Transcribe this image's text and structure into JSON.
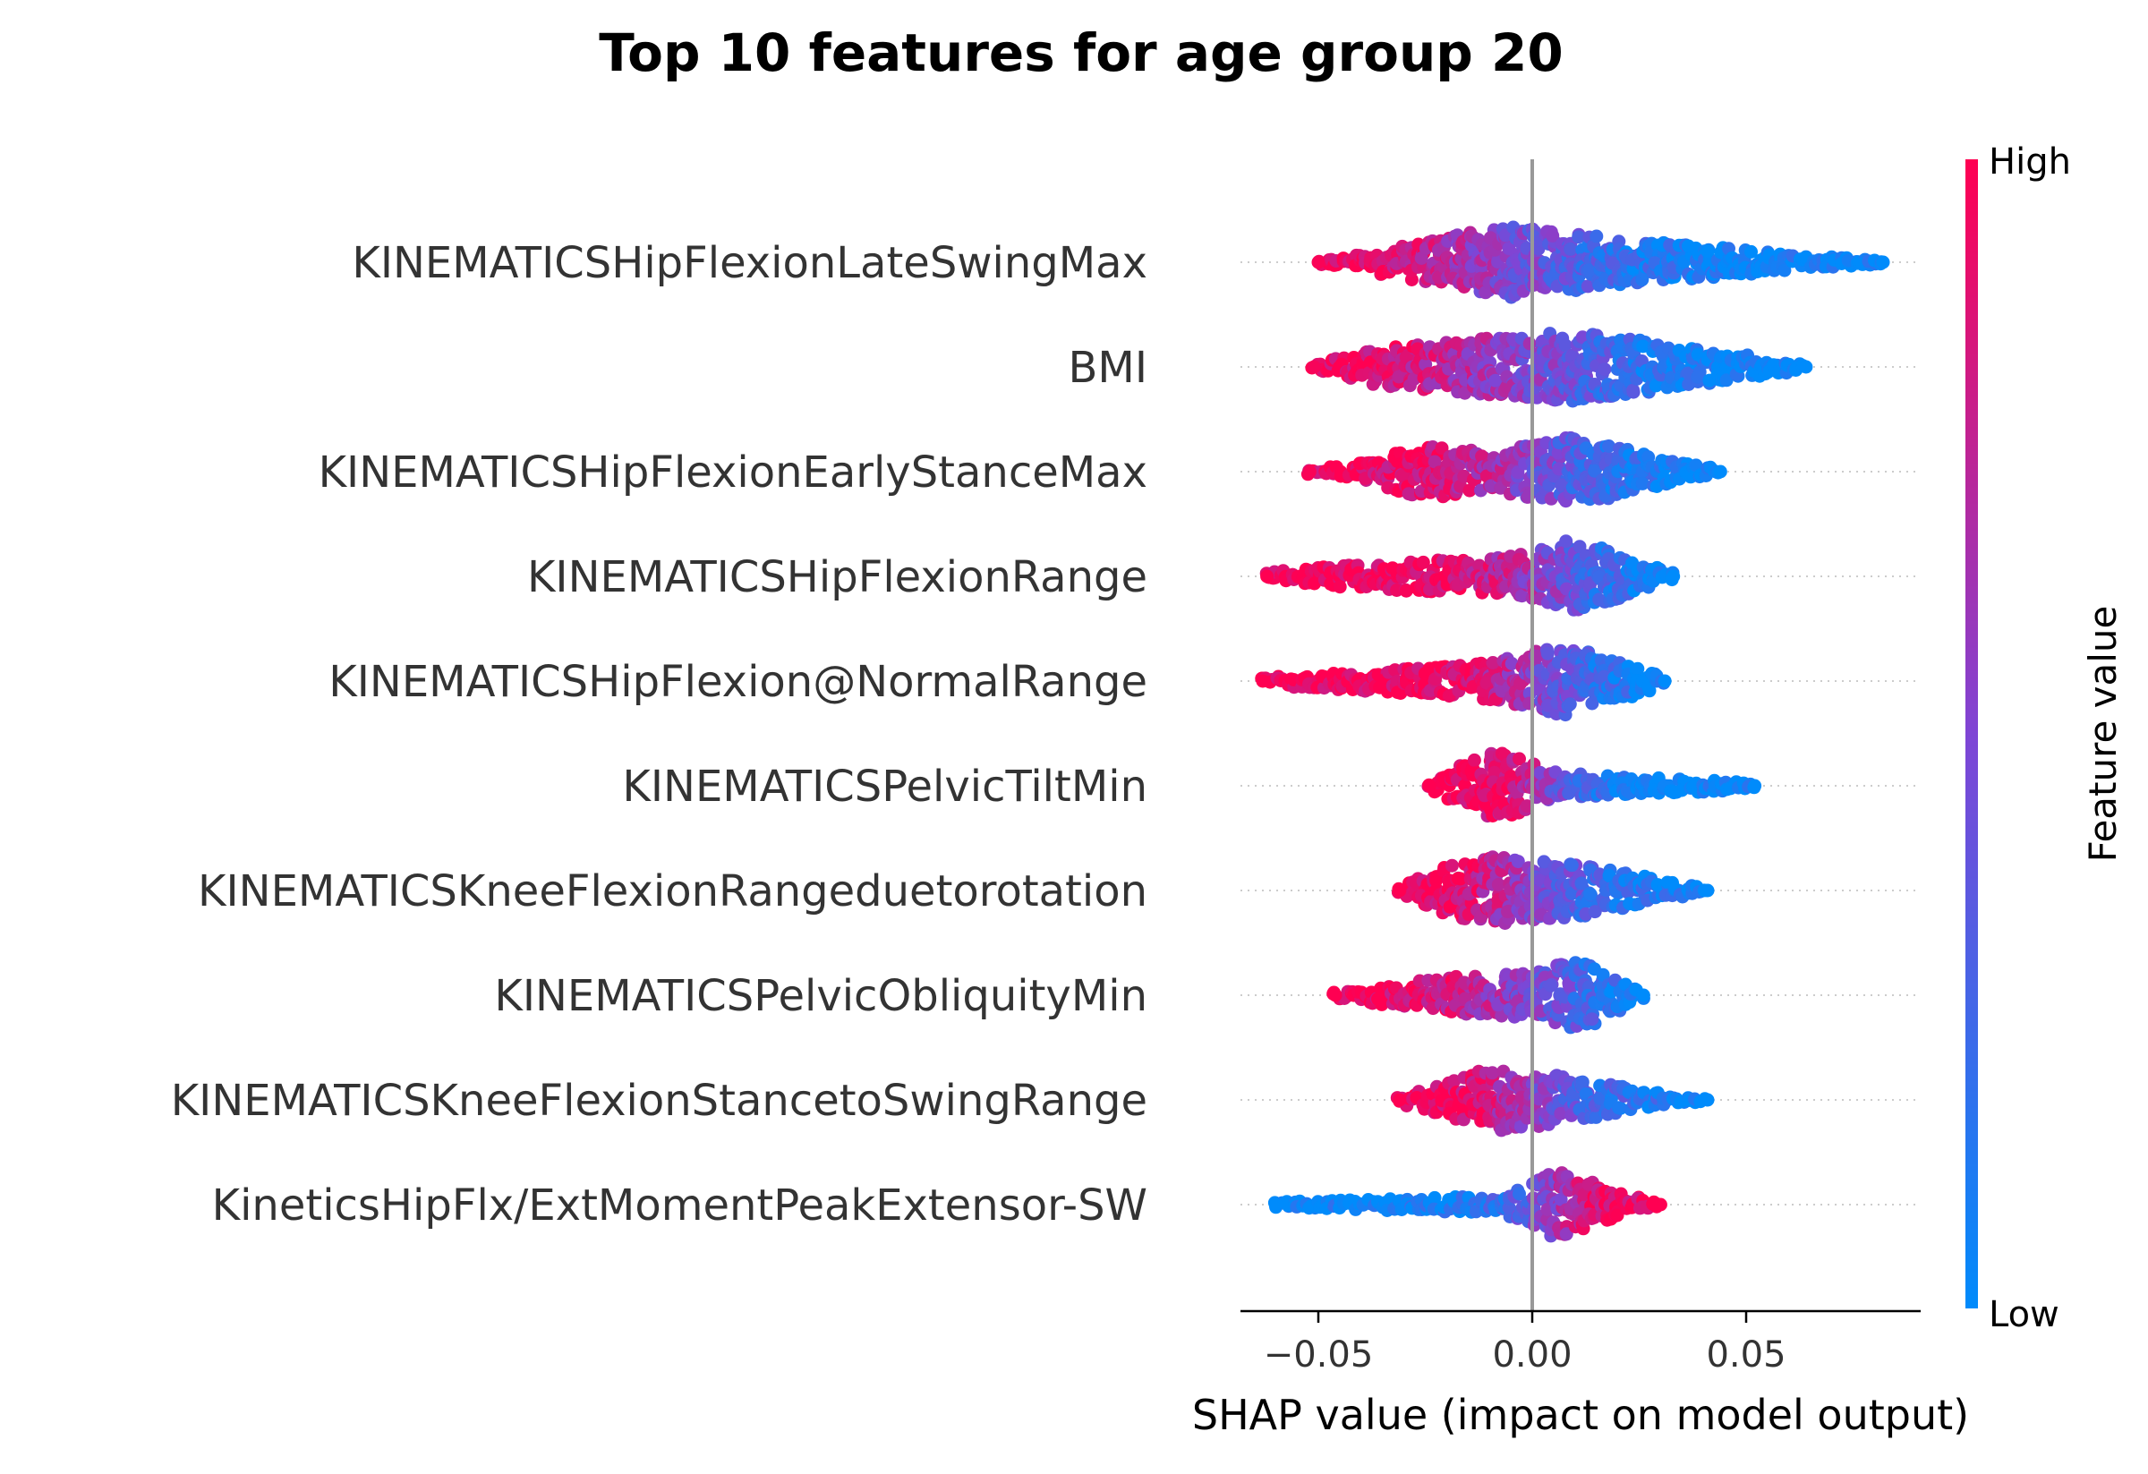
{
  "chart_data": {
    "type": "scatter",
    "subtype": "shap-beeswarm",
    "title": "Top 10 features for age group 20",
    "xlabel": "SHAP value (impact on model output)",
    "xlim": [
      -0.07,
      0.09
    ],
    "xticks": [
      -0.05,
      0.0,
      0.05
    ],
    "xtick_labels": [
      "−0.05",
      "0.00",
      "0.05"
    ],
    "zero_line": 0.0,
    "grid": false,
    "colorbar": {
      "label": "Feature value",
      "high_label": "High",
      "low_label": "Low",
      "high_color": "#ff0052",
      "low_color": "#008bfb"
    },
    "features": [
      {
        "name": "KINEMATICSHipFlexionLateSwingMax",
        "min": -0.05,
        "max": 0.082,
        "spread": [
          [
            -0.05,
            0.06
          ],
          [
            -0.03,
            0.45
          ],
          [
            -0.015,
            0.85
          ],
          [
            -0.005,
            1.0
          ],
          [
            0.01,
            0.8
          ],
          [
            0.03,
            0.55
          ],
          [
            0.05,
            0.35
          ],
          [
            0.065,
            0.18
          ],
          [
            0.082,
            0.06
          ]
        ],
        "hue": [
          [
            -0.05,
            0.02
          ],
          [
            -0.03,
            0.12
          ],
          [
            -0.015,
            0.35
          ],
          [
            -0.005,
            0.5
          ],
          [
            0.005,
            0.62
          ],
          [
            0.02,
            0.82
          ],
          [
            0.04,
            0.95
          ],
          [
            0.082,
            1.0
          ]
        ]
      },
      {
        "name": "BMI",
        "min": -0.051,
        "max": 0.064,
        "spread": [
          [
            -0.051,
            0.06
          ],
          [
            -0.035,
            0.55
          ],
          [
            -0.02,
            0.7
          ],
          [
            -0.005,
            0.85
          ],
          [
            0.01,
            1.0
          ],
          [
            0.025,
            0.75
          ],
          [
            0.04,
            0.5
          ],
          [
            0.055,
            0.25
          ],
          [
            0.064,
            0.06
          ]
        ],
        "hue": [
          [
            -0.051,
            0.03
          ],
          [
            -0.03,
            0.15
          ],
          [
            -0.01,
            0.38
          ],
          [
            0.005,
            0.55
          ],
          [
            0.02,
            0.78
          ],
          [
            0.035,
            0.93
          ],
          [
            0.064,
            1.0
          ]
        ]
      },
      {
        "name": "KINEMATICSHipFlexionEarlyStanceMax",
        "min": -0.052,
        "max": 0.044,
        "spread": [
          [
            -0.052,
            0.08
          ],
          [
            -0.04,
            0.25
          ],
          [
            -0.025,
            0.75
          ],
          [
            -0.01,
            0.55
          ],
          [
            0.0,
            0.75
          ],
          [
            0.008,
            1.0
          ],
          [
            0.02,
            0.7
          ],
          [
            0.032,
            0.35
          ],
          [
            0.044,
            0.06
          ]
        ],
        "hue": [
          [
            -0.052,
            0.02
          ],
          [
            -0.025,
            0.1
          ],
          [
            -0.01,
            0.3
          ],
          [
            0.0,
            0.5
          ],
          [
            0.012,
            0.7
          ],
          [
            0.025,
            0.88
          ],
          [
            0.044,
            1.0
          ]
        ]
      },
      {
        "name": "KINEMATICSHipFlexionRange",
        "min": -0.062,
        "max": 0.033,
        "spread": [
          [
            -0.062,
            0.12
          ],
          [
            -0.045,
            0.32
          ],
          [
            -0.025,
            0.45
          ],
          [
            -0.01,
            0.5
          ],
          [
            0.0,
            0.72
          ],
          [
            0.008,
            1.0
          ],
          [
            0.018,
            0.75
          ],
          [
            0.026,
            0.38
          ],
          [
            0.033,
            0.1
          ]
        ],
        "hue": [
          [
            -0.062,
            0.0
          ],
          [
            -0.02,
            0.05
          ],
          [
            -0.005,
            0.28
          ],
          [
            0.005,
            0.5
          ],
          [
            0.015,
            0.75
          ],
          [
            0.033,
            1.0
          ]
        ]
      },
      {
        "name": "KINEMATICSHipFlexion@NormalRange",
        "min": -0.063,
        "max": 0.031,
        "spread": [
          [
            -0.063,
            0.12
          ],
          [
            -0.045,
            0.25
          ],
          [
            -0.03,
            0.35
          ],
          [
            -0.015,
            0.45
          ],
          [
            -0.002,
            0.75
          ],
          [
            0.006,
            1.0
          ],
          [
            0.016,
            0.72
          ],
          [
            0.025,
            0.38
          ],
          [
            0.031,
            0.1
          ]
        ],
        "hue": [
          [
            -0.063,
            0.0
          ],
          [
            -0.02,
            0.05
          ],
          [
            -0.005,
            0.3
          ],
          [
            0.005,
            0.55
          ],
          [
            0.015,
            0.8
          ],
          [
            0.031,
            1.0
          ]
        ]
      },
      {
        "name": "KINEMATICSPelvicTiltMin",
        "min": -0.024,
        "max": 0.052,
        "spread": [
          [
            -0.024,
            0.12
          ],
          [
            -0.016,
            0.6
          ],
          [
            -0.009,
            1.0
          ],
          [
            -0.002,
            0.75
          ],
          [
            0.004,
            0.4
          ],
          [
            0.015,
            0.3
          ],
          [
            0.03,
            0.22
          ],
          [
            0.045,
            0.15
          ],
          [
            0.052,
            0.06
          ]
        ],
        "hue": [
          [
            -0.024,
            0.0
          ],
          [
            -0.005,
            0.1
          ],
          [
            0.003,
            0.45
          ],
          [
            0.012,
            0.75
          ],
          [
            0.025,
            0.95
          ],
          [
            0.052,
            1.0
          ]
        ]
      },
      {
        "name": "KINEMATICSKneeFlexionRangeduetorotation",
        "min": -0.031,
        "max": 0.041,
        "spread": [
          [
            -0.031,
            0.1
          ],
          [
            -0.02,
            0.7
          ],
          [
            -0.01,
            0.95
          ],
          [
            0.0,
            0.85
          ],
          [
            0.01,
            0.75
          ],
          [
            0.022,
            0.5
          ],
          [
            0.033,
            0.22
          ],
          [
            0.041,
            0.06
          ]
        ],
        "hue": [
          [
            -0.031,
            0.0
          ],
          [
            -0.015,
            0.12
          ],
          [
            -0.003,
            0.4
          ],
          [
            0.008,
            0.62
          ],
          [
            0.02,
            0.85
          ],
          [
            0.041,
            1.0
          ]
        ]
      },
      {
        "name": "KINEMATICSPelvicObliquityMin",
        "min": -0.046,
        "max": 0.026,
        "spread": [
          [
            -0.046,
            0.08
          ],
          [
            -0.03,
            0.35
          ],
          [
            -0.018,
            0.55
          ],
          [
            -0.005,
            0.6
          ],
          [
            0.004,
            0.8
          ],
          [
            0.012,
            1.0
          ],
          [
            0.02,
            0.45
          ],
          [
            0.026,
            0.08
          ]
        ],
        "hue": [
          [
            -0.046,
            0.0
          ],
          [
            -0.02,
            0.15
          ],
          [
            -0.005,
            0.42
          ],
          [
            0.008,
            0.65
          ],
          [
            0.026,
            1.0
          ]
        ]
      },
      {
        "name": "KINEMATICSKneeFlexionStancetoSwingRange",
        "min": -0.031,
        "max": 0.041,
        "spread": [
          [
            -0.031,
            0.1
          ],
          [
            -0.018,
            0.55
          ],
          [
            -0.01,
            0.9
          ],
          [
            0.0,
            0.8
          ],
          [
            0.01,
            0.6
          ],
          [
            0.022,
            0.35
          ],
          [
            0.032,
            0.15
          ],
          [
            0.041,
            0.05
          ]
        ],
        "hue": [
          [
            -0.031,
            0.0
          ],
          [
            -0.012,
            0.12
          ],
          [
            0.0,
            0.45
          ],
          [
            0.012,
            0.7
          ],
          [
            0.041,
            1.0
          ]
        ]
      },
      {
        "name": "KineticsHipFlx/ExtMomentPeakExtensor-SW",
        "min": -0.06,
        "max": 0.03,
        "spread": [
          [
            -0.06,
            0.08
          ],
          [
            -0.045,
            0.12
          ],
          [
            -0.025,
            0.2
          ],
          [
            -0.008,
            0.25
          ],
          [
            0.0,
            0.55
          ],
          [
            0.005,
            1.0
          ],
          [
            0.013,
            0.65
          ],
          [
            0.022,
            0.3
          ],
          [
            0.03,
            0.06
          ]
        ],
        "hue": [
          [
            -0.06,
            1.0
          ],
          [
            -0.015,
            0.92
          ],
          [
            -0.003,
            0.7
          ],
          [
            0.005,
            0.42
          ],
          [
            0.012,
            0.15
          ],
          [
            0.03,
            0.0
          ]
        ]
      }
    ]
  }
}
